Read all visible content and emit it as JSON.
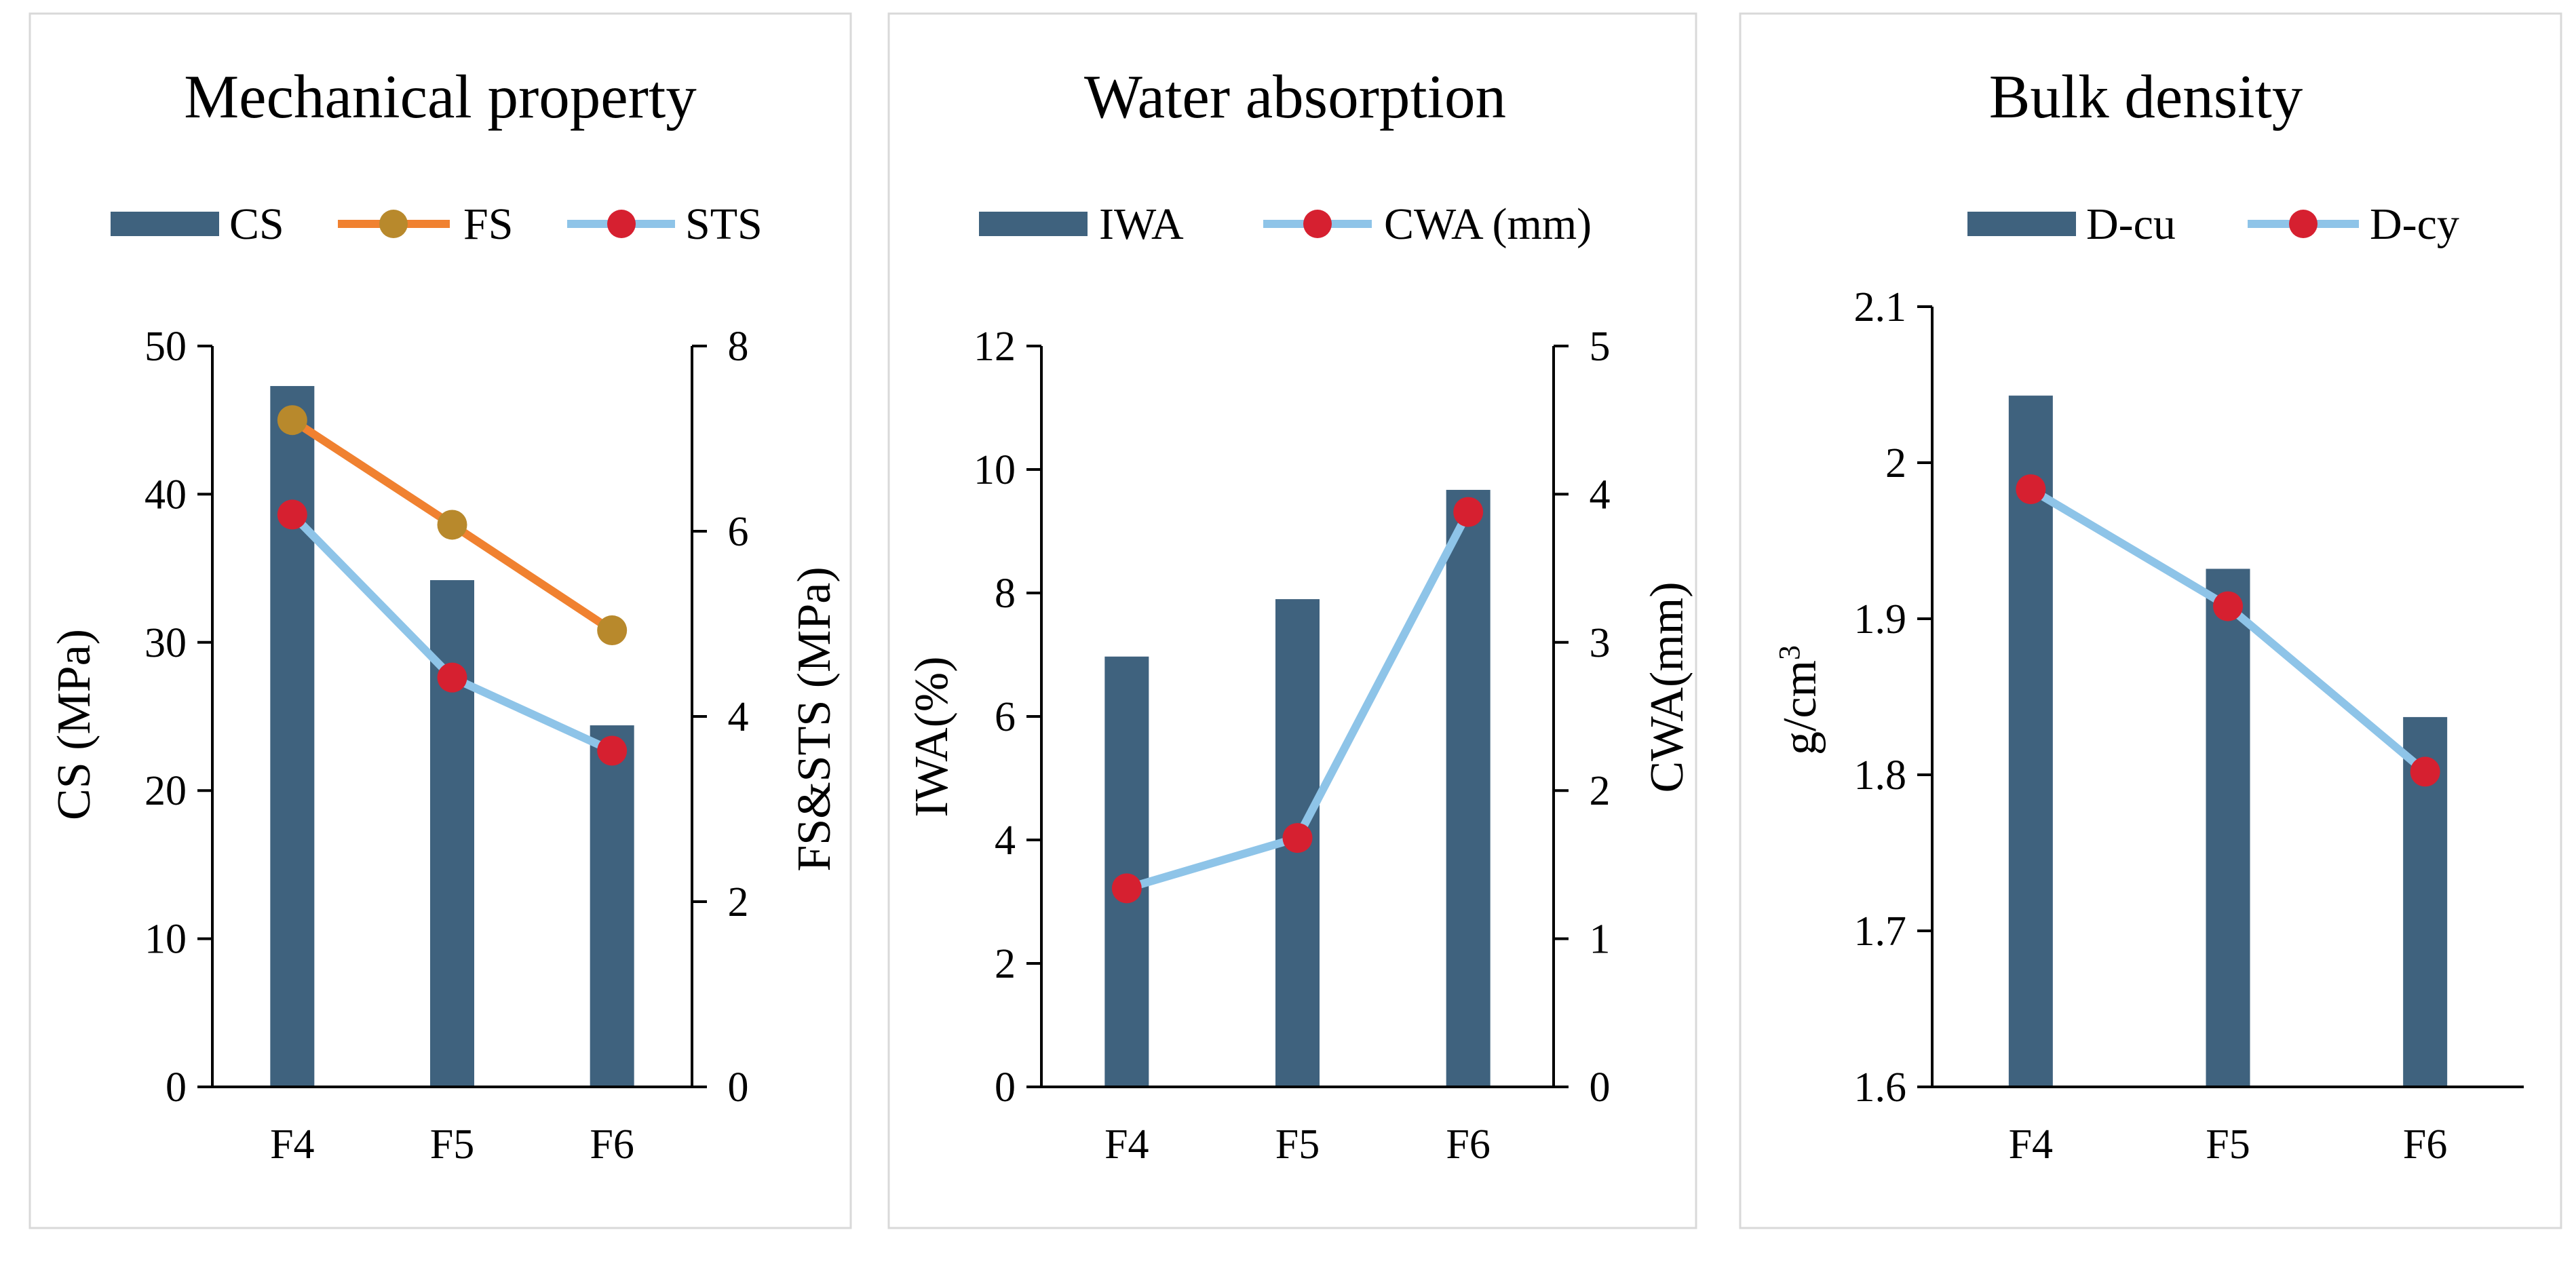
{
  "colors": {
    "bar": "#3f627e",
    "fs_line": "#f08130",
    "fs_marker": "#b8892c",
    "sts_line": "#8ec4e8",
    "marker_red": "#d62030",
    "frame": "#d9d9d9"
  },
  "chart_data": [
    {
      "type": "bar",
      "title": "Mechanical property",
      "categories": [
        "F4",
        "F5",
        "F6"
      ],
      "series": [
        {
          "name": "CS",
          "kind": "bar",
          "axis": "left",
          "values": [
            47.3,
            34.2,
            24.4
          ]
        },
        {
          "name": "FS",
          "kind": "line",
          "axis": "right",
          "values": [
            7.2,
            6.07,
            4.93
          ]
        },
        {
          "name": "STS",
          "kind": "line",
          "axis": "right",
          "values": [
            6.18,
            4.42,
            3.63
          ]
        }
      ],
      "ylabel": "CS (MPa)",
      "y2label": "FS&STS (MPa)",
      "ylim": [
        0,
        50
      ],
      "y2lim": [
        0,
        8
      ],
      "yticks": [
        0,
        10,
        20,
        30,
        40,
        50
      ],
      "y2ticks": [
        0,
        2,
        4,
        6,
        8
      ],
      "legend": [
        "CS",
        "FS",
        "STS"
      ],
      "legend_position": "top",
      "grid": false
    },
    {
      "type": "bar",
      "title": "Water absorption",
      "categories": [
        "F4",
        "F5",
        "F6"
      ],
      "series": [
        {
          "name": "IWA",
          "kind": "bar",
          "axis": "left",
          "values": [
            6.97,
            7.9,
            9.67
          ]
        },
        {
          "name": "CWA (mm)",
          "kind": "line",
          "axis": "right",
          "values": [
            1.34,
            1.68,
            3.88
          ]
        }
      ],
      "ylabel": "IWA(%)",
      "y2label": "CWA(mm)",
      "ylim": [
        0,
        12
      ],
      "y2lim": [
        0,
        5
      ],
      "yticks": [
        0,
        2,
        4,
        6,
        8,
        10,
        12
      ],
      "y2ticks": [
        0,
        1,
        2,
        3,
        4,
        5
      ],
      "legend": [
        "IWA",
        "CWA (mm)"
      ],
      "legend_position": "top",
      "grid": false
    },
    {
      "type": "bar",
      "title": "Bulk density",
      "categories": [
        "F4",
        "F5",
        "F6"
      ],
      "series": [
        {
          "name": "D-cu",
          "kind": "bar",
          "axis": "left",
          "values": [
            2.043,
            1.932,
            1.837
          ]
        },
        {
          "name": "D-cy",
          "kind": "line",
          "axis": "left",
          "values": [
            1.983,
            1.908,
            1.802
          ]
        }
      ],
      "ylabel": "g/cm",
      "ylabel_superscript": "3",
      "ylim": [
        1.6,
        2.1
      ],
      "yticks": [
        "1.6",
        "1.7",
        "1.8",
        "1.9",
        "2",
        "2.1"
      ],
      "legend": [
        "D-cu",
        "D-cy"
      ],
      "legend_position": "top",
      "grid": false
    }
  ]
}
